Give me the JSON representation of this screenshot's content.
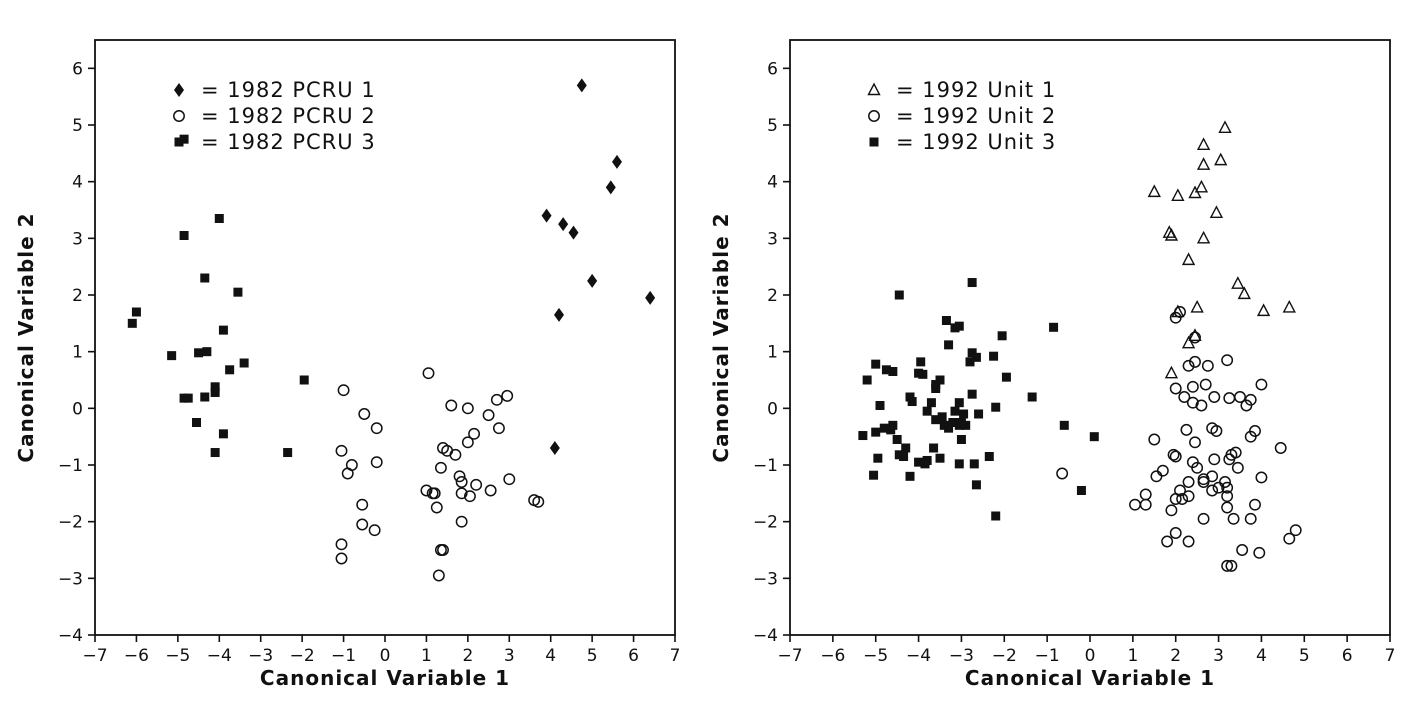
{
  "chart_data": [
    {
      "type": "scatter",
      "title": "",
      "xlabel": "Canonical Variable 1",
      "ylabel": "Canonical Variable 2",
      "xlim": [
        -7,
        7
      ],
      "ylim": [
        -4,
        6.5
      ],
      "xticks": [
        -7,
        -6,
        -5,
        -4,
        -3,
        -2,
        -1,
        0,
        1,
        2,
        3,
        4,
        5,
        6,
        7
      ],
      "yticks": [
        -4,
        -3,
        -2,
        -1,
        0,
        1,
        2,
        3,
        4,
        5,
        6
      ],
      "grid": false,
      "legend_position": "top-left",
      "series": [
        {
          "name": "= 1982 PCRU 1",
          "marker": "diamond-filled",
          "points": [
            [
              4.75,
              5.7
            ],
            [
              5.6,
              4.35
            ],
            [
              5.45,
              3.9
            ],
            [
              3.9,
              3.4
            ],
            [
              4.3,
              3.25
            ],
            [
              4.55,
              3.1
            ],
            [
              5.0,
              2.25
            ],
            [
              6.4,
              1.95
            ],
            [
              4.2,
              1.65
            ],
            [
              4.1,
              -0.7
            ]
          ]
        },
        {
          "name": "= 1982 PCRU 2",
          "marker": "circle-open",
          "points": [
            [
              1.05,
              0.62
            ],
            [
              -1.0,
              0.32
            ],
            [
              2.95,
              0.22
            ],
            [
              2.7,
              0.15
            ],
            [
              1.6,
              0.05
            ],
            [
              2.0,
              0.0
            ],
            [
              -0.5,
              -0.1
            ],
            [
              2.5,
              -0.12
            ],
            [
              -0.2,
              -0.35
            ],
            [
              2.75,
              -0.35
            ],
            [
              2.15,
              -0.45
            ],
            [
              2.0,
              -0.6
            ],
            [
              1.4,
              -0.7
            ],
            [
              -1.05,
              -0.75
            ],
            [
              1.5,
              -0.75
            ],
            [
              1.7,
              -0.82
            ],
            [
              -0.2,
              -0.95
            ],
            [
              -0.8,
              -1.0
            ],
            [
              1.35,
              -1.05
            ],
            [
              -0.9,
              -1.15
            ],
            [
              1.8,
              -1.2
            ],
            [
              3.0,
              -1.25
            ],
            [
              1.85,
              -1.3
            ],
            [
              2.2,
              -1.35
            ],
            [
              1.0,
              -1.45
            ],
            [
              1.15,
              -1.5
            ],
            [
              1.2,
              -1.5
            ],
            [
              2.55,
              -1.45
            ],
            [
              1.85,
              -1.5
            ],
            [
              2.05,
              -1.55
            ],
            [
              3.6,
              -1.62
            ],
            [
              3.7,
              -1.65
            ],
            [
              -0.55,
              -1.7
            ],
            [
              1.25,
              -1.75
            ],
            [
              1.85,
              -2.0
            ],
            [
              -0.55,
              -2.05
            ],
            [
              -0.25,
              -2.15
            ],
            [
              -1.05,
              -2.4
            ],
            [
              1.35,
              -2.5
            ],
            [
              1.4,
              -2.5
            ],
            [
              -1.05,
              -2.65
            ],
            [
              1.3,
              -2.95
            ]
          ]
        },
        {
          "name": "= 1982 PCRU 3",
          "marker": "square-filled",
          "points": [
            [
              -4.85,
              4.75
            ],
            [
              -4.0,
              3.35
            ],
            [
              -4.85,
              3.05
            ],
            [
              -4.35,
              2.3
            ],
            [
              -3.55,
              2.05
            ],
            [
              -6.0,
              1.7
            ],
            [
              -6.1,
              1.5
            ],
            [
              -3.9,
              1.38
            ],
            [
              -5.15,
              0.93
            ],
            [
              -4.5,
              0.98
            ],
            [
              -4.3,
              1.0
            ],
            [
              -3.4,
              0.8
            ],
            [
              -3.75,
              0.68
            ],
            [
              -1.95,
              0.5
            ],
            [
              -4.1,
              0.38
            ],
            [
              -4.1,
              0.28
            ],
            [
              -4.35,
              0.2
            ],
            [
              -4.85,
              0.18
            ],
            [
              -4.75,
              0.18
            ],
            [
              -4.55,
              -0.25
            ],
            [
              -3.9,
              -0.45
            ],
            [
              -4.1,
              -0.78
            ],
            [
              -2.35,
              -0.78
            ]
          ]
        }
      ]
    },
    {
      "type": "scatter",
      "title": "",
      "xlabel": "Canonical Variable 1",
      "ylabel": "Canonical Variable 2",
      "xlim": [
        -7,
        7
      ],
      "ylim": [
        -4,
        6.5
      ],
      "xticks": [
        -7,
        -6,
        -5,
        -4,
        -3,
        -2,
        -1,
        0,
        1,
        2,
        3,
        4,
        5,
        6,
        7
      ],
      "yticks": [
        -4,
        -3,
        -2,
        -1,
        0,
        1,
        2,
        3,
        4,
        5,
        6
      ],
      "grid": false,
      "legend_position": "top-left",
      "series": [
        {
          "name": "= 1992 Unit 1",
          "marker": "triangle-open",
          "points": [
            [
              3.15,
              4.95
            ],
            [
              2.65,
              4.65
            ],
            [
              3.05,
              4.38
            ],
            [
              2.65,
              4.3
            ],
            [
              2.6,
              3.9
            ],
            [
              2.45,
              3.8
            ],
            [
              1.5,
              3.82
            ],
            [
              2.05,
              3.75
            ],
            [
              2.95,
              3.45
            ],
            [
              1.85,
              3.1
            ],
            [
              1.9,
              3.05
            ],
            [
              2.65,
              3.0
            ],
            [
              2.3,
              2.62
            ],
            [
              3.45,
              2.2
            ],
            [
              3.6,
              2.02
            ],
            [
              4.05,
              1.72
            ],
            [
              4.65,
              1.78
            ],
            [
              2.5,
              1.78
            ],
            [
              2.05,
              1.7
            ],
            [
              2.45,
              1.28
            ],
            [
              2.3,
              1.15
            ],
            [
              1.9,
              0.62
            ]
          ]
        },
        {
          "name": "= 1992 Unit 2",
          "marker": "circle-open",
          "points": [
            [
              2.1,
              1.7
            ],
            [
              2.0,
              1.6
            ],
            [
              2.45,
              1.25
            ],
            [
              3.2,
              0.85
            ],
            [
              2.45,
              0.82
            ],
            [
              2.75,
              0.75
            ],
            [
              2.3,
              0.75
            ],
            [
              4.0,
              0.42
            ],
            [
              2.7,
              0.42
            ],
            [
              2.4,
              0.38
            ],
            [
              2.0,
              0.35
            ],
            [
              3.5,
              0.2
            ],
            [
              2.2,
              0.2
            ],
            [
              2.9,
              0.2
            ],
            [
              3.25,
              0.18
            ],
            [
              3.75,
              0.15
            ],
            [
              2.4,
              0.1
            ],
            [
              2.6,
              0.05
            ],
            [
              3.65,
              0.05
            ],
            [
              2.25,
              -0.38
            ],
            [
              2.95,
              -0.4
            ],
            [
              2.85,
              -0.35
            ],
            [
              3.85,
              -0.4
            ],
            [
              1.5,
              -0.55
            ],
            [
              3.75,
              -0.5
            ],
            [
              2.45,
              -0.6
            ],
            [
              4.45,
              -0.7
            ],
            [
              3.4,
              -0.78
            ],
            [
              2.0,
              -0.85
            ],
            [
              1.95,
              -0.82
            ],
            [
              3.3,
              -0.82
            ],
            [
              2.9,
              -0.9
            ],
            [
              3.25,
              -0.9
            ],
            [
              2.4,
              -0.95
            ],
            [
              3.45,
              -1.05
            ],
            [
              2.5,
              -1.05
            ],
            [
              1.7,
              -1.1
            ],
            [
              1.55,
              -1.2
            ],
            [
              2.85,
              -1.2
            ],
            [
              4.0,
              -1.22
            ],
            [
              2.65,
              -1.25
            ],
            [
              2.65,
              -1.3
            ],
            [
              3.15,
              -1.3
            ],
            [
              2.3,
              -1.3
            ],
            [
              3.0,
              -1.4
            ],
            [
              3.2,
              -1.4
            ],
            [
              2.1,
              -1.45
            ],
            [
              2.85,
              -1.45
            ],
            [
              3.2,
              -1.55
            ],
            [
              1.3,
              -1.52
            ],
            [
              2.15,
              -1.6
            ],
            [
              2.3,
              -1.55
            ],
            [
              2.0,
              -1.6
            ],
            [
              1.05,
              -1.7
            ],
            [
              1.3,
              -1.7
            ],
            [
              3.85,
              -1.7
            ],
            [
              3.2,
              -1.75
            ],
            [
              1.9,
              -1.8
            ],
            [
              2.65,
              -1.95
            ],
            [
              3.35,
              -1.95
            ],
            [
              3.75,
              -1.95
            ],
            [
              4.8,
              -2.15
            ],
            [
              2.0,
              -2.2
            ],
            [
              1.8,
              -2.35
            ],
            [
              2.3,
              -2.35
            ],
            [
              4.65,
              -2.3
            ],
            [
              3.55,
              -2.5
            ],
            [
              3.95,
              -2.55
            ],
            [
              3.2,
              -2.78
            ],
            [
              3.3,
              -2.78
            ],
            [
              -0.65,
              -1.15
            ]
          ]
        },
        {
          "name": "= 1992 Unit 3",
          "marker": "square-filled",
          "points": [
            [
              -4.45,
              2.0
            ],
            [
              -2.75,
              2.22
            ],
            [
              -3.35,
              1.55
            ],
            [
              -3.05,
              1.45
            ],
            [
              -3.15,
              1.42
            ],
            [
              -2.05,
              1.28
            ],
            [
              -0.85,
              1.43
            ],
            [
              -3.3,
              1.12
            ],
            [
              -2.75,
              0.98
            ],
            [
              -2.25,
              0.92
            ],
            [
              -2.65,
              0.9
            ],
            [
              -2.8,
              0.82
            ],
            [
              -3.95,
              0.82
            ],
            [
              -5.0,
              0.78
            ],
            [
              -4.75,
              0.68
            ],
            [
              -4.6,
              0.65
            ],
            [
              -4.0,
              0.62
            ],
            [
              -3.9,
              0.6
            ],
            [
              -1.95,
              0.55
            ],
            [
              -3.5,
              0.5
            ],
            [
              -3.6,
              0.42
            ],
            [
              -3.6,
              0.35
            ],
            [
              -5.2,
              0.5
            ],
            [
              -2.75,
              0.25
            ],
            [
              -1.35,
              0.2
            ],
            [
              -4.2,
              0.2
            ],
            [
              -4.15,
              0.12
            ],
            [
              -3.7,
              0.1
            ],
            [
              -3.05,
              0.1
            ],
            [
              -3.8,
              -0.05
            ],
            [
              -3.15,
              -0.05
            ],
            [
              -2.95,
              -0.1
            ],
            [
              -3.45,
              -0.15
            ],
            [
              -2.6,
              -0.1
            ],
            [
              -4.9,
              0.05
            ],
            [
              -3.6,
              -0.2
            ],
            [
              -3.2,
              -0.25
            ],
            [
              -3.05,
              -0.3
            ],
            [
              -3.4,
              -0.3
            ],
            [
              -3.0,
              -0.25
            ],
            [
              -3.3,
              -0.35
            ],
            [
              -2.9,
              -0.3
            ],
            [
              -2.2,
              0.02
            ],
            [
              -4.6,
              -0.3
            ],
            [
              -4.8,
              -0.35
            ],
            [
              -4.65,
              -0.38
            ],
            [
              -5.0,
              -0.42
            ],
            [
              -5.3,
              -0.48
            ],
            [
              -4.5,
              -0.55
            ],
            [
              -3.0,
              -0.55
            ],
            [
              -0.6,
              -0.3
            ],
            [
              -4.3,
              -0.7
            ],
            [
              -3.65,
              -0.7
            ],
            [
              -4.45,
              -0.82
            ],
            [
              -4.35,
              -0.85
            ],
            [
              -4.95,
              -0.88
            ],
            [
              -3.5,
              -0.88
            ],
            [
              -3.8,
              -0.92
            ],
            [
              -3.85,
              -0.98
            ],
            [
              -4.0,
              -0.95
            ],
            [
              -3.05,
              -0.98
            ],
            [
              -2.7,
              -0.98
            ],
            [
              -2.35,
              -0.85
            ],
            [
              0.1,
              -0.5
            ],
            [
              -4.2,
              -1.2
            ],
            [
              -5.05,
              -1.18
            ],
            [
              -2.65,
              -1.35
            ],
            [
              -0.2,
              -1.45
            ],
            [
              -2.2,
              -1.9
            ]
          ]
        }
      ]
    }
  ]
}
